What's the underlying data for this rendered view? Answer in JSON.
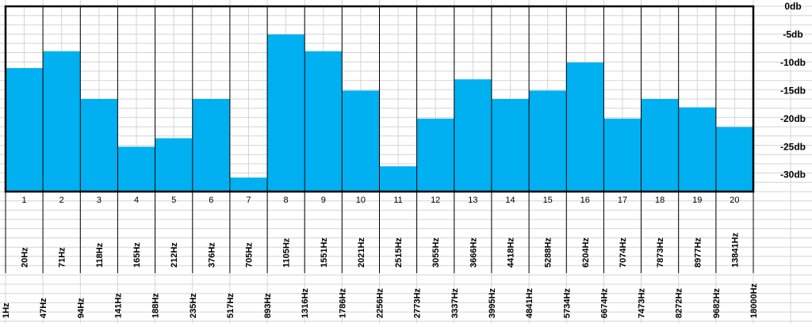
{
  "chart_data": {
    "type": "bar",
    "title": "",
    "xlabel": "",
    "ylabel": "",
    "ylim": [
      -33,
      0
    ],
    "y_ticks": [
      "0db",
      "-5db",
      "-10db",
      "-15db",
      "-20db",
      "-25db",
      "-30db"
    ],
    "y_tick_values": [
      0,
      -5,
      -10,
      -15,
      -20,
      -25,
      -30
    ],
    "grid": true,
    "colors": {
      "bar": "#00b0f0",
      "frame": "#000000",
      "grid": "#d4d4d4"
    },
    "categories": [
      "1",
      "2",
      "3",
      "4",
      "5",
      "6",
      "7",
      "8",
      "9",
      "10",
      "11",
      "12",
      "13",
      "14",
      "15",
      "16",
      "17",
      "18",
      "19",
      "20"
    ],
    "center_frequencies": [
      "20Hz",
      "71Hz",
      "118Hz",
      "165Hz",
      "212Hz",
      "376Hz",
      "705Hz",
      "1105Hz",
      "1551Hz",
      "2021Hz",
      "2515Hz",
      "3055Hz",
      "3666Hz",
      "4418Hz",
      "5288Hz",
      "6204Hz",
      "7074Hz",
      "7873Hz",
      "8977Hz",
      "13841Hz"
    ],
    "band_edges": [
      "1Hz",
      "47Hz",
      "94Hz",
      "141Hz",
      "188Hz",
      "235Hz",
      "517Hz",
      "893Hz",
      "1316Hz",
      "1786Hz",
      "2256Hz",
      "2773Hz",
      "3337Hz",
      "3995Hz",
      "4841Hz",
      "5734Hz",
      "6674Hz",
      "7473Hz",
      "8272Hz",
      "9682Hz",
      "18000Hz"
    ],
    "values": [
      -11,
      -8,
      -16.5,
      -25,
      -23.5,
      -16.5,
      -30.5,
      -5,
      -8,
      -15,
      -28.5,
      -20,
      -13,
      -16.5,
      -15,
      -10,
      -20,
      -16.5,
      -18,
      -21.5
    ]
  }
}
